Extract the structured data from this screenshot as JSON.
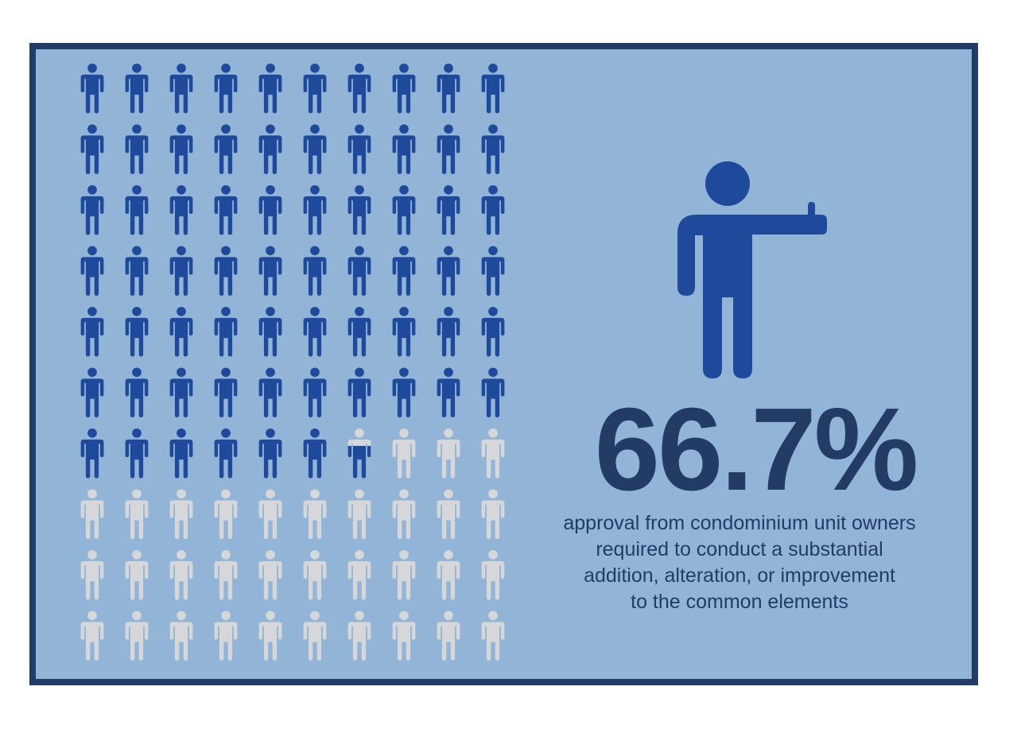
{
  "infographic": {
    "value_label": "66.7%",
    "value_fraction": 0.667,
    "caption_lines": [
      "approval from condominium unit owners",
      "required to conduct a substantial",
      "addition, alteration, or improvement",
      "to the common elements"
    ]
  },
  "pictogram": {
    "rows": 10,
    "columns": 10,
    "filled_figures": 66.7
  },
  "colors": {
    "frame_border": "#213c68",
    "panel_background": "#92b4d7",
    "filled_figure": "#1f4a9c",
    "empty_figure": "#d5d7d9",
    "value_text": "#223c66",
    "caption_text": "#223c66"
  },
  "icons": {
    "grid_figure": "person-icon",
    "hero_figure": "person-thumbs-up-icon"
  }
}
